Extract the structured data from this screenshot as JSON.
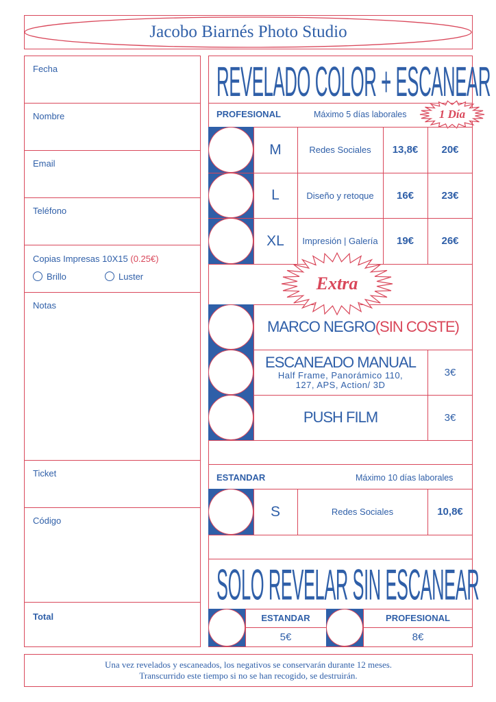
{
  "header": {
    "title": "Jacobo Biarnés Photo Studio"
  },
  "form": {
    "fields": [
      "Fecha",
      "Nombre",
      "Email",
      "Teléfono"
    ],
    "copies": {
      "label": "Copias Impresas 10X15",
      "price": "(0.25€)",
      "options": [
        "Brillo",
        "Luster"
      ]
    },
    "notes": "Notas",
    "ticket": "Ticket",
    "code": "Código",
    "total": "Total"
  },
  "colors": {
    "blue": "#2f5fa8",
    "red": "#d9475a"
  },
  "services": {
    "title": "REVELADO COLOR + ESCANEAR",
    "profesional": {
      "label": "PROFESIONAL",
      "time": "Máximo 5 días laborales",
      "badge": "1 Día",
      "rows": [
        {
          "size": "M",
          "desc": "Redes Sociales",
          "price": "13,8€",
          "price_1day": "20€"
        },
        {
          "size": "L",
          "desc": "Diseño y retoque",
          "price": "16€",
          "price_1day": "23€"
        },
        {
          "size": "XL",
          "desc": "Impresión | Galería",
          "price": "19€",
          "price_1day": "26€"
        }
      ]
    },
    "extra": {
      "badge": "Extra",
      "marco": {
        "label": "MARCO NEGRO",
        "note": "(SIN COSTE)"
      },
      "manual": {
        "label": "ESCANEADO MANUAL",
        "sub1": "Half Frame, Panorámico 110,",
        "sub2": "127, APS, Action/ 3D",
        "price": "3€"
      },
      "push": {
        "label": "PUSH FILM",
        "price": "3€"
      }
    },
    "estandar": {
      "label": "ESTANDAR",
      "time": "Máximo 10 días laborales",
      "row": {
        "size": "S",
        "desc": "Redes Sociales",
        "price": "10,8€"
      }
    },
    "solo": {
      "title": "SOLO REVELAR SIN ESCANEAR",
      "options": [
        {
          "label": "ESTANDAR",
          "price": "5€"
        },
        {
          "label": "PROFESIONAL",
          "price": "8€"
        }
      ]
    }
  },
  "footer": {
    "line1": "Una vez revelados y escaneados, los negativos se conservarán durante 12 meses.",
    "line2": "Transcurrido este tiempo si no se han recogido, se destruirán."
  }
}
